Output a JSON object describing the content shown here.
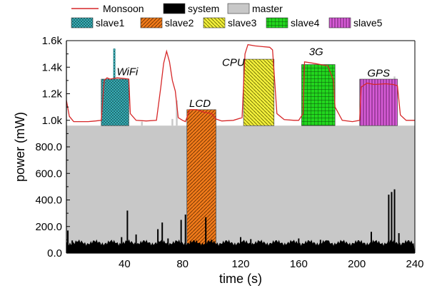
{
  "chart_data": {
    "type": "area",
    "title": "",
    "xlabel": "time (s)",
    "ylabel": "power (mW)",
    "xlim": [
      0,
      240
    ],
    "ylim": [
      0,
      1600
    ],
    "x_ticks": [
      40,
      80,
      120,
      160,
      200,
      240
    ],
    "x_tick_labels": [
      "40",
      "80",
      "120",
      "160",
      "200",
      "240"
    ],
    "y_ticks": [
      0,
      200,
      400,
      600,
      800,
      1000,
      1200,
      1400,
      1600
    ],
    "y_tick_labels": [
      "0.0",
      "200.0",
      "400.0",
      "600.0",
      "800.0",
      "1.0k",
      "1.2k",
      "1.4k",
      "1.6k"
    ],
    "legend": {
      "placement": "top",
      "entries": [
        {
          "name": "Monsoon",
          "style": "line",
          "color": "#d62728"
        },
        {
          "name": "system",
          "style": "fill",
          "color": "#000000"
        },
        {
          "name": "master",
          "style": "fill",
          "color": "#c8c8c8"
        },
        {
          "name": "slave1",
          "style": "crosshatch",
          "color": "#3fc1c9"
        },
        {
          "name": "slave2",
          "style": "diagonal",
          "color": "#f07a1a"
        },
        {
          "name": "slave3",
          "style": "diagonal",
          "color": "#f2ef3b"
        },
        {
          "name": "slave4",
          "style": "grid",
          "color": "#22d61e"
        },
        {
          "name": "slave5",
          "style": "vertical",
          "color": "#d65bd6"
        }
      ]
    },
    "series": [
      {
        "name": "Monsoon",
        "points": [
          [
            0,
            1150
          ],
          [
            2,
            1030
          ],
          [
            5,
            990
          ],
          [
            10,
            990
          ],
          [
            15,
            990
          ],
          [
            20,
            995
          ],
          [
            24,
            1000
          ],
          [
            26,
            1300
          ],
          [
            28,
            1320
          ],
          [
            30,
            1310
          ],
          [
            35,
            1320
          ],
          [
            40,
            1315
          ],
          [
            43,
            1310
          ],
          [
            44,
            1050
          ],
          [
            48,
            1000
          ],
          [
            55,
            995
          ],
          [
            62,
            1000
          ],
          [
            65,
            1250
          ],
          [
            67,
            1430
          ],
          [
            69,
            1520
          ],
          [
            71,
            1440
          ],
          [
            73,
            1300
          ],
          [
            75,
            1220
          ],
          [
            77,
            1020
          ],
          [
            80,
            1000
          ],
          [
            82,
            990
          ],
          [
            85,
            1080
          ],
          [
            90,
            1080
          ],
          [
            95,
            1060
          ],
          [
            100,
            1050
          ],
          [
            103,
            1010
          ],
          [
            107,
            995
          ],
          [
            115,
            1000
          ],
          [
            121,
            1020
          ],
          [
            123,
            1500
          ],
          [
            125,
            1570
          ],
          [
            130,
            1560
          ],
          [
            135,
            1555
          ],
          [
            140,
            1550
          ],
          [
            142,
            1530
          ],
          [
            145,
            1050
          ],
          [
            150,
            1005
          ],
          [
            157,
            1000
          ],
          [
            160,
            1000
          ],
          [
            163,
            1050
          ],
          [
            164,
            1440
          ],
          [
            170,
            1430
          ],
          [
            175,
            1420
          ],
          [
            180,
            1410
          ],
          [
            184,
            1300
          ],
          [
            185,
            1100
          ],
          [
            190,
            1000
          ],
          [
            197,
            990
          ],
          [
            202,
            1000
          ],
          [
            203,
            1250
          ],
          [
            207,
            1280
          ],
          [
            212,
            1270
          ],
          [
            220,
            1275
          ],
          [
            225,
            1270
          ],
          [
            228,
            1260
          ],
          [
            230,
            1040
          ],
          [
            234,
            1000
          ],
          [
            240,
            1000
          ]
        ]
      },
      {
        "name": "master",
        "level": 960,
        "spikes": [
          [
            52,
            990
          ],
          [
            73,
            1010
          ],
          [
            76,
            1150
          ],
          [
            165,
            1020
          ],
          [
            226,
            1330
          ]
        ]
      },
      {
        "name": "system",
        "baseline": 80,
        "spikes": [
          [
            1,
            170
          ],
          [
            4,
            95
          ],
          [
            38,
            120
          ],
          [
            42,
            320
          ],
          [
            48,
            140
          ],
          [
            63,
            180
          ],
          [
            66,
            230
          ],
          [
            70,
            110
          ],
          [
            79,
            250
          ],
          [
            82,
            290
          ],
          [
            96,
            270
          ],
          [
            100,
            100
          ],
          [
            120,
            120
          ],
          [
            127,
            105
          ],
          [
            160,
            110
          ],
          [
            175,
            100
          ],
          [
            180,
            95
          ],
          [
            210,
            160
          ],
          [
            222,
            440
          ],
          [
            224,
            460
          ],
          [
            226,
            480
          ],
          [
            229,
            150
          ]
        ]
      },
      {
        "name": "slave1",
        "ranges": [
          [
            24,
            43,
            960,
            1310
          ]
        ],
        "peak": [
          [
            33,
            1540
          ]
        ]
      },
      {
        "name": "slave2",
        "ranges": [
          [
            83,
            103,
            0,
            1080
          ]
        ]
      },
      {
        "name": "slave3",
        "ranges": [
          [
            122,
            143,
            960,
            1460
          ]
        ]
      },
      {
        "name": "slave4",
        "ranges": [
          [
            162,
            185,
            960,
            1420
          ]
        ]
      },
      {
        "name": "slave5",
        "ranges": [
          [
            202,
            228,
            960,
            1310
          ]
        ]
      }
    ],
    "annotations": [
      {
        "text": "WiFi",
        "x": 42,
        "y": 1340
      },
      {
        "text": "LCD",
        "x": 92,
        "y": 1100
      },
      {
        "text": "CPU",
        "x": 115,
        "y": 1410
      },
      {
        "text": "3G",
        "x": 172,
        "y": 1490
      },
      {
        "text": "GPS",
        "x": 215,
        "y": 1330
      }
    ]
  }
}
